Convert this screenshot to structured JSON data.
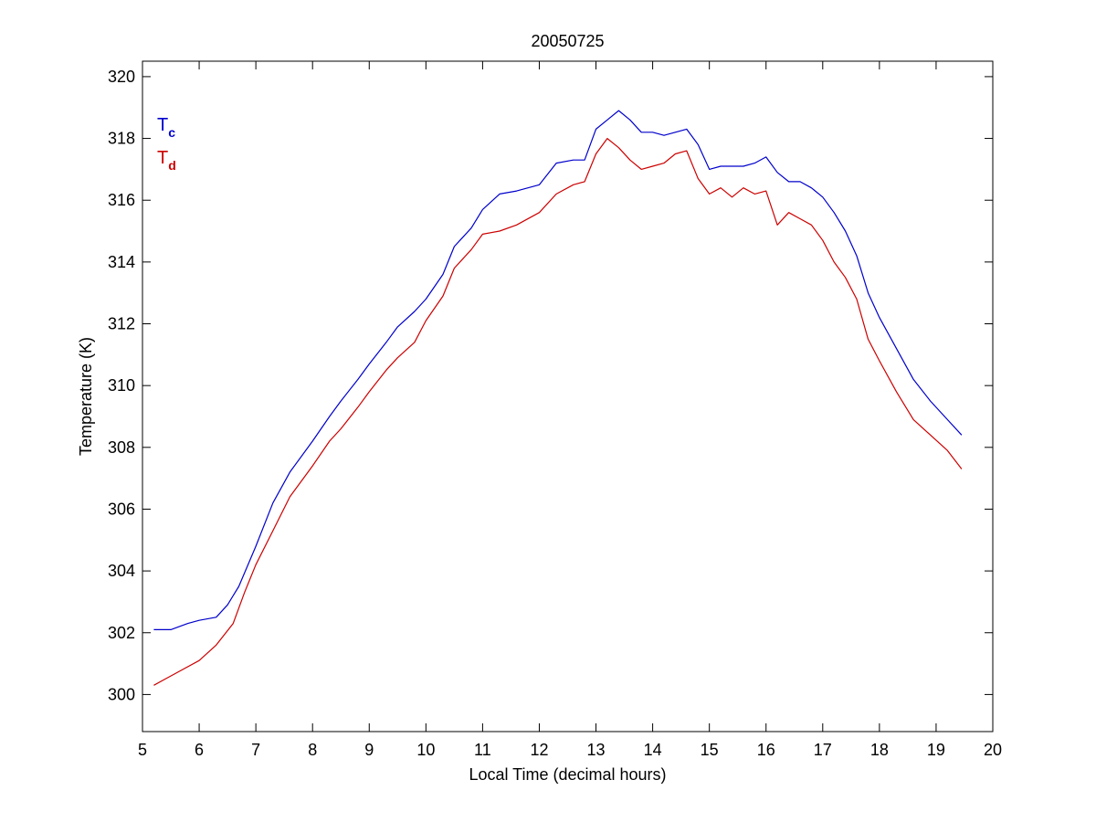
{
  "chart_data": {
    "type": "line",
    "title": "20050725",
    "xlabel": "Local Time (decimal hours)",
    "ylabel": "Temperature (K)",
    "xlim": [
      5,
      20
    ],
    "ylim": [
      298.8,
      320.5
    ],
    "xticks": [
      5,
      6,
      7,
      8,
      9,
      10,
      11,
      12,
      13,
      14,
      15,
      16,
      17,
      18,
      19,
      20
    ],
    "yticks": [
      300,
      302,
      304,
      306,
      308,
      310,
      312,
      314,
      316,
      318,
      320
    ],
    "grid": false,
    "legend_placement": "top-left",
    "legend": [
      {
        "symbol": "T",
        "subscript": "c",
        "color": "#0000cc"
      },
      {
        "symbol": "T",
        "subscript": "d",
        "color": "#cc0000"
      }
    ],
    "series": [
      {
        "id": "Tc",
        "color": "#0000cc",
        "x": [
          5.2,
          5.5,
          5.8,
          6.0,
          6.3,
          6.5,
          6.7,
          7.0,
          7.3,
          7.6,
          8.0,
          8.3,
          8.5,
          8.8,
          9.0,
          9.3,
          9.5,
          9.8,
          10.0,
          10.3,
          10.5,
          10.8,
          11.0,
          11.3,
          11.6,
          12.0,
          12.3,
          12.6,
          12.8,
          13.0,
          13.2,
          13.4,
          13.6,
          13.8,
          14.0,
          14.2,
          14.4,
          14.6,
          14.8,
          15.0,
          15.2,
          15.4,
          15.6,
          15.8,
          16.0,
          16.2,
          16.4,
          16.6,
          16.8,
          17.0,
          17.2,
          17.4,
          17.6,
          17.8,
          18.0,
          18.3,
          18.6,
          18.9,
          19.2,
          19.45
        ],
        "y": [
          302.1,
          302.1,
          302.3,
          302.4,
          302.5,
          302.9,
          303.5,
          304.8,
          306.2,
          307.2,
          308.2,
          309.0,
          309.5,
          310.2,
          310.7,
          311.4,
          311.9,
          312.4,
          312.8,
          313.6,
          314.5,
          315.1,
          315.7,
          316.2,
          316.3,
          316.5,
          317.2,
          317.3,
          317.3,
          318.3,
          318.6,
          318.9,
          318.6,
          318.2,
          318.2,
          318.1,
          318.2,
          318.3,
          317.8,
          317.0,
          317.1,
          317.1,
          317.1,
          317.2,
          317.4,
          316.9,
          316.6,
          316.6,
          316.4,
          316.1,
          315.6,
          315.0,
          314.2,
          313.0,
          312.2,
          311.2,
          310.2,
          309.5,
          308.9,
          308.4
        ]
      },
      {
        "id": "Td",
        "color": "#cc0000",
        "x": [
          5.2,
          5.4,
          5.7,
          6.0,
          6.3,
          6.6,
          6.8,
          7.0,
          7.3,
          7.6,
          8.0,
          8.3,
          8.5,
          8.8,
          9.0,
          9.3,
          9.5,
          9.8,
          10.0,
          10.3,
          10.5,
          10.8,
          11.0,
          11.3,
          11.6,
          12.0,
          12.3,
          12.6,
          12.8,
          13.0,
          13.2,
          13.4,
          13.6,
          13.8,
          14.0,
          14.2,
          14.4,
          14.6,
          14.8,
          15.0,
          15.2,
          15.4,
          15.6,
          15.8,
          16.0,
          16.2,
          16.4,
          16.6,
          16.8,
          17.0,
          17.2,
          17.4,
          17.6,
          17.8,
          18.0,
          18.3,
          18.6,
          18.9,
          19.2,
          19.45
        ],
        "y": [
          300.3,
          300.5,
          300.8,
          301.1,
          301.6,
          302.3,
          303.3,
          304.2,
          305.3,
          306.4,
          307.4,
          308.2,
          308.6,
          309.3,
          309.8,
          310.5,
          310.9,
          311.4,
          312.1,
          312.9,
          313.8,
          314.4,
          314.9,
          315.0,
          315.2,
          315.6,
          316.2,
          316.5,
          316.6,
          317.5,
          318.0,
          317.7,
          317.3,
          317.0,
          317.1,
          317.2,
          317.5,
          317.6,
          316.7,
          316.2,
          316.4,
          316.1,
          316.4,
          316.2,
          316.3,
          315.2,
          315.6,
          315.4,
          315.2,
          314.7,
          314.0,
          313.5,
          312.8,
          311.5,
          310.8,
          309.8,
          308.9,
          308.4,
          307.9,
          307.3
        ]
      }
    ]
  }
}
